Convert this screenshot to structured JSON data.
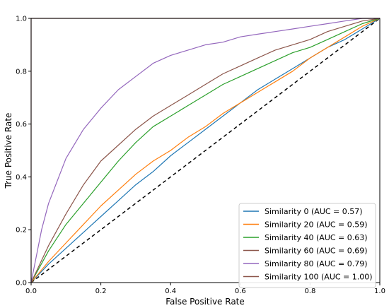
{
  "chart_data": {
    "type": "line",
    "title": "",
    "xlabel": "False Positive Rate",
    "ylabel": "True Positive Rate",
    "xlim": [
      0,
      1
    ],
    "ylim": [
      0,
      1
    ],
    "xticks": [
      "0.0",
      "0.2",
      "0.4",
      "0.6",
      "0.8",
      "1.0"
    ],
    "yticks": [
      "0.0",
      "0.2",
      "0.4",
      "0.6",
      "0.8",
      "1.0"
    ],
    "grid": false,
    "legend_position": "bottom-right",
    "chance_line": {
      "x": [
        0,
        1
      ],
      "y": [
        0,
        1
      ],
      "color": "#000000",
      "style": "dashed"
    },
    "series": [
      {
        "name": "Similarity 0 (AUC = 0.57)",
        "color": "#1f77b4",
        "x": [
          0,
          0.05,
          0.1,
          0.15,
          0.2,
          0.25,
          0.3,
          0.35,
          0.4,
          0.45,
          0.5,
          0.55,
          0.6,
          0.65,
          0.7,
          0.75,
          0.8,
          0.85,
          0.9,
          0.95,
          1.0
        ],
        "y": [
          0,
          0.07,
          0.13,
          0.19,
          0.25,
          0.31,
          0.37,
          0.42,
          0.48,
          0.53,
          0.58,
          0.63,
          0.68,
          0.73,
          0.77,
          0.81,
          0.85,
          0.89,
          0.92,
          0.96,
          1.0
        ]
      },
      {
        "name": "Similarity 20 (AUC = 0.59)",
        "color": "#ff7f0e",
        "x": [
          0,
          0.05,
          0.1,
          0.15,
          0.2,
          0.25,
          0.3,
          0.35,
          0.4,
          0.45,
          0.5,
          0.55,
          0.6,
          0.65,
          0.7,
          0.75,
          0.8,
          0.85,
          0.9,
          0.95,
          1.0
        ],
        "y": [
          0,
          0.08,
          0.15,
          0.22,
          0.29,
          0.35,
          0.41,
          0.46,
          0.5,
          0.55,
          0.59,
          0.64,
          0.68,
          0.72,
          0.76,
          0.8,
          0.85,
          0.89,
          0.93,
          0.97,
          1.0
        ]
      },
      {
        "name": "Similarity 40 (AUC = 0.63)",
        "color": "#2ca02c",
        "x": [
          0,
          0.05,
          0.1,
          0.15,
          0.2,
          0.25,
          0.3,
          0.35,
          0.4,
          0.45,
          0.5,
          0.55,
          0.6,
          0.65,
          0.7,
          0.75,
          0.8,
          0.85,
          0.9,
          0.95,
          1.0
        ],
        "y": [
          0,
          0.12,
          0.22,
          0.3,
          0.38,
          0.46,
          0.53,
          0.59,
          0.63,
          0.67,
          0.71,
          0.75,
          0.78,
          0.81,
          0.84,
          0.87,
          0.89,
          0.92,
          0.95,
          0.98,
          1.0
        ]
      },
      {
        "name": "Similarity 60 (AUC = 0.69)",
        "color": "#8c564b",
        "x": [
          0,
          0.05,
          0.1,
          0.15,
          0.2,
          0.25,
          0.3,
          0.35,
          0.4,
          0.45,
          0.5,
          0.55,
          0.6,
          0.65,
          0.7,
          0.75,
          0.8,
          0.85,
          0.9,
          0.95,
          1.0
        ],
        "y": [
          0,
          0.14,
          0.26,
          0.37,
          0.46,
          0.52,
          0.58,
          0.63,
          0.67,
          0.71,
          0.75,
          0.79,
          0.82,
          0.85,
          0.88,
          0.9,
          0.92,
          0.95,
          0.97,
          0.99,
          1.0
        ]
      },
      {
        "name": "Similarity 80 (AUC = 0.79)",
        "color": "#9467bd",
        "x": [
          0,
          0.03,
          0.05,
          0.1,
          0.15,
          0.2,
          0.25,
          0.3,
          0.35,
          0.4,
          0.45,
          0.5,
          0.55,
          0.6,
          0.65,
          0.7,
          0.75,
          0.8,
          0.85,
          0.9,
          0.95,
          1.0
        ],
        "y": [
          0,
          0.2,
          0.3,
          0.47,
          0.58,
          0.66,
          0.73,
          0.78,
          0.83,
          0.86,
          0.88,
          0.9,
          0.91,
          0.93,
          0.94,
          0.95,
          0.96,
          0.97,
          0.98,
          0.99,
          1.0,
          1.0
        ]
      },
      {
        "name": "Similarity 100 (AUC = 1.00)",
        "color": "#8c564b",
        "x": [
          0,
          0,
          1.0
        ],
        "y": [
          0,
          1.0,
          1.0
        ]
      }
    ]
  }
}
